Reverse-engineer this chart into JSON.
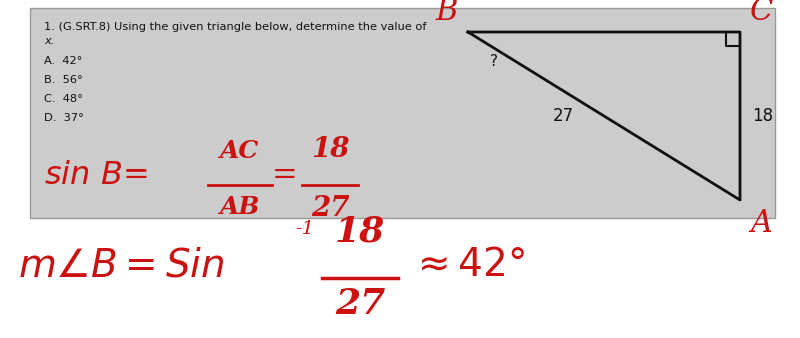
{
  "bg_color": "#ffffff",
  "top_box_bg": "#d0d0d0",
  "question_text": "1. (G.SRT.8) Using the given triangle below, determine the value of",
  "question_x": "x.",
  "choices": [
    "A.  42°",
    "B.  56°",
    "C.  48°",
    "D.  37°"
  ],
  "red_color": "#cc1111",
  "black_color": "#111111"
}
